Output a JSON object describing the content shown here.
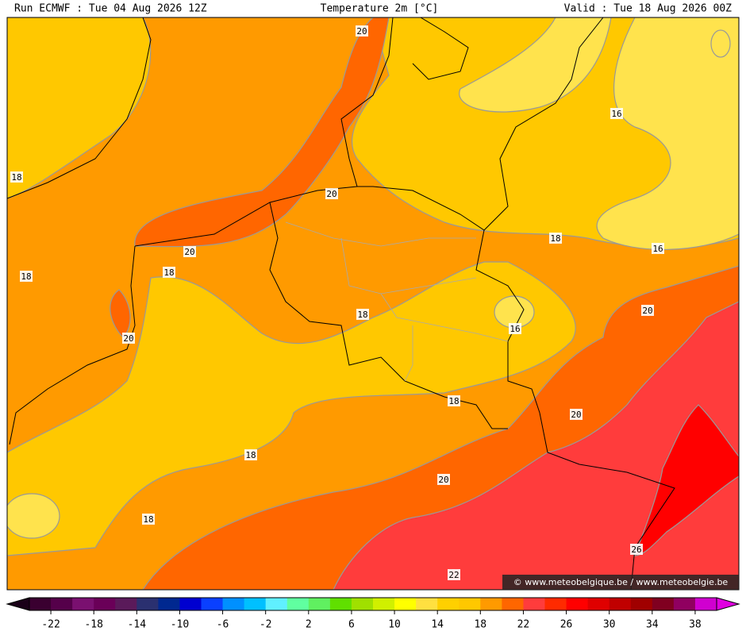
{
  "header": {
    "run": "Run ECMWF : Tue 04 Aug 2026 12Z",
    "title": "Temperature 2m [°C]",
    "valid": "Valid : Tue 18 Aug 2026 00Z"
  },
  "contour_labels": [
    "20",
    "16",
    "18",
    "20",
    "18",
    "16",
    "20",
    "18",
    "18",
    "20",
    "18",
    "16",
    "20",
    "18",
    "20",
    "18",
    "20",
    "18",
    "26",
    "22"
  ],
  "watermark": "© www.meteobelgique.be / www.meteobelgie.be",
  "colorbar": {
    "range": [
      -24,
      40
    ],
    "ticks": [
      -22,
      -18,
      -14,
      -10,
      -6,
      -2,
      2,
      6,
      10,
      14,
      18,
      22,
      26,
      30,
      34,
      38
    ],
    "colors": [
      "#3a0030",
      "#55004a",
      "#7a1070",
      "#6a0058",
      "#5a1a5a",
      "#2a3070",
      "#002890",
      "#0000d0",
      "#0a40ff",
      "#0090ff",
      "#00c0ff",
      "#60f0ff",
      "#60ffa0",
      "#60f060",
      "#60e000",
      "#a0e000",
      "#d0f000",
      "#ffff00",
      "#ffe040",
      "#ffd000",
      "#ffc800",
      "#ff9a00",
      "#ff6600",
      "#ff3c3c",
      "#ff2a00",
      "#ff0000",
      "#e00000",
      "#c00000",
      "#a00000",
      "#800020",
      "#900060",
      "#d000d0"
    ]
  }
}
